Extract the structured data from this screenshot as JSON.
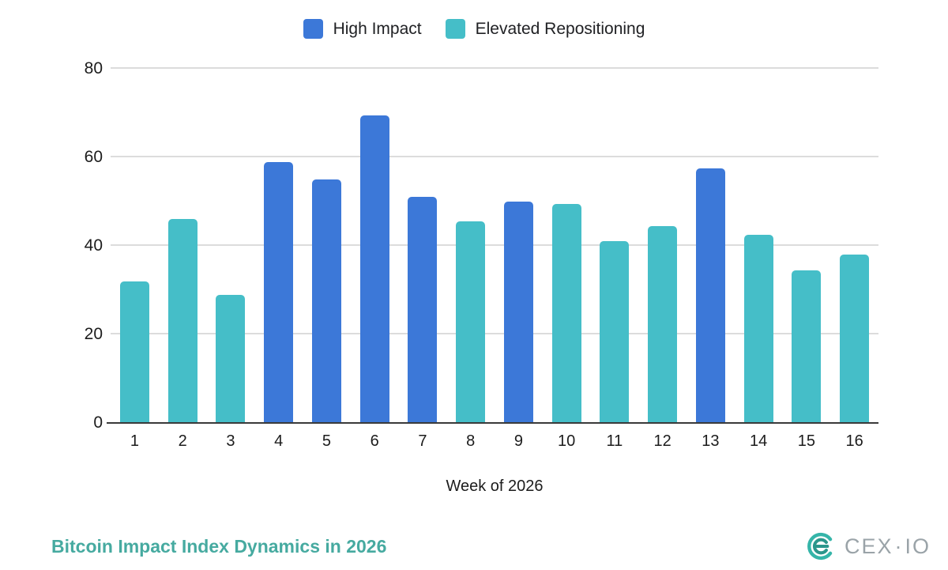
{
  "legend": {
    "items": [
      {
        "label": "High Impact",
        "color": "#3c78d8"
      },
      {
        "label": "Elevated Repositioning",
        "color": "#45bec8"
      }
    ]
  },
  "chart_data": {
    "type": "bar",
    "title": "Bitcoin Impact Index Dynamics in 2026",
    "xlabel": "Week of 2026",
    "ylabel": "",
    "ylim": [
      0,
      80
    ],
    "yticks": [
      0,
      20,
      40,
      60,
      80
    ],
    "grid": true,
    "legend_position": "top-center",
    "categories": [
      "1",
      "2",
      "3",
      "4",
      "5",
      "6",
      "7",
      "8",
      "9",
      "10",
      "11",
      "12",
      "13",
      "14",
      "15",
      "16"
    ],
    "series_colors": {
      "High Impact": "#3c78d8",
      "Elevated Repositioning": "#45bec8"
    },
    "bars": [
      {
        "week": "1",
        "value": 32,
        "series": "Elevated Repositioning"
      },
      {
        "week": "2",
        "value": 46,
        "series": "Elevated Repositioning"
      },
      {
        "week": "3",
        "value": 29,
        "series": "Elevated Repositioning"
      },
      {
        "week": "4",
        "value": 59,
        "series": "High Impact"
      },
      {
        "week": "5",
        "value": 55,
        "series": "High Impact"
      },
      {
        "week": "6",
        "value": 69.5,
        "series": "High Impact"
      },
      {
        "week": "7",
        "value": 51,
        "series": "High Impact"
      },
      {
        "week": "8",
        "value": 45.5,
        "series": "Elevated Repositioning"
      },
      {
        "week": "9",
        "value": 50,
        "series": "High Impact"
      },
      {
        "week": "10",
        "value": 49.5,
        "series": "Elevated Repositioning"
      },
      {
        "week": "11",
        "value": 41,
        "series": "Elevated Repositioning"
      },
      {
        "week": "12",
        "value": 44.5,
        "series": "Elevated Repositioning"
      },
      {
        "week": "13",
        "value": 57.5,
        "series": "High Impact"
      },
      {
        "week": "14",
        "value": 42.5,
        "series": "Elevated Repositioning"
      },
      {
        "week": "15",
        "value": 34.5,
        "series": "Elevated Repositioning"
      },
      {
        "week": "16",
        "value": 38,
        "series": "Elevated Repositioning"
      }
    ]
  },
  "footer": {
    "title": "Bitcoin Impact Index Dynamics in 2026",
    "title_color": "#46aaa0",
    "logo": {
      "text": "CEX",
      "separator": "·",
      "suffix": "IO",
      "mark_color": "#35b5a9",
      "mark_inner_color": "#2c968c",
      "text_color": "#9aa3a8"
    }
  }
}
